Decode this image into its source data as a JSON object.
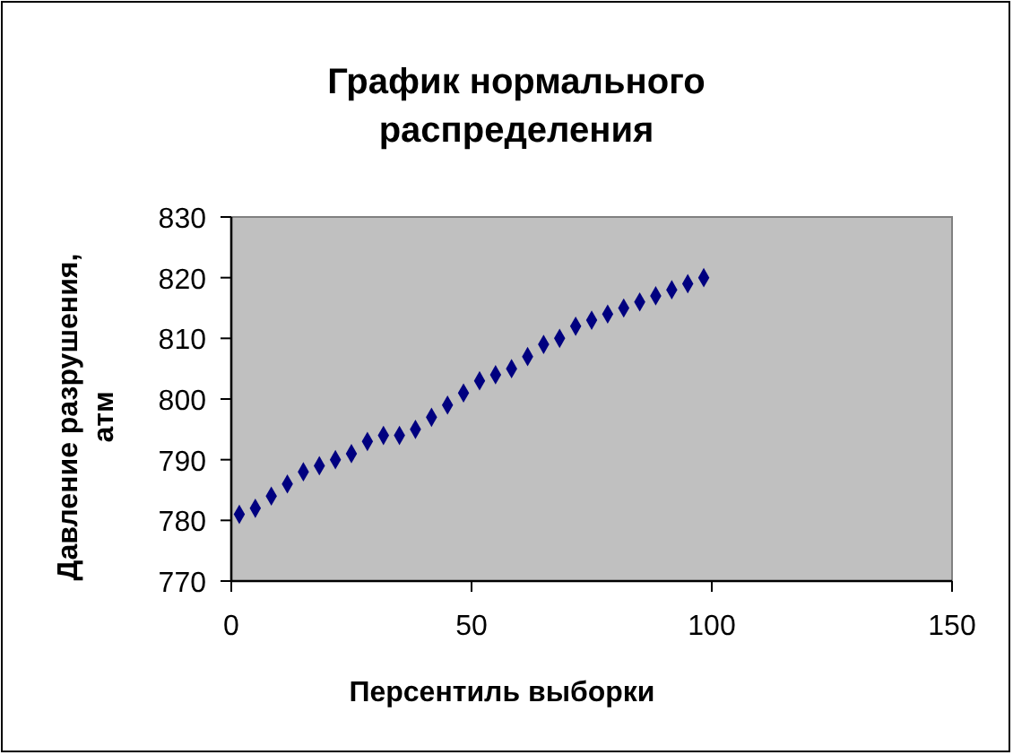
{
  "chart_data": {
    "type": "scatter",
    "title": "График нормального\nраспределения",
    "xlabel": "Персентиль выборки",
    "ylabel": "Давление разрушения,\nатм",
    "x": [
      1.67,
      5,
      8.33,
      11.67,
      15,
      18.33,
      21.67,
      25,
      28.33,
      31.67,
      35,
      38.33,
      41.67,
      45,
      48.33,
      51.67,
      55,
      58.33,
      61.67,
      65,
      68.33,
      71.67,
      75,
      78.33,
      81.67,
      85,
      88.33,
      91.67,
      95,
      98.33
    ],
    "series": [
      {
        "color": "#000080",
        "values": [
          781,
          782,
          784,
          786,
          788,
          789,
          790,
          791,
          793,
          794,
          794,
          795,
          797,
          799,
          801,
          803,
          804,
          805,
          807,
          809,
          810,
          812,
          813,
          814,
          815,
          816,
          817,
          818,
          819,
          820
        ]
      }
    ],
    "xlim": [
      0,
      150
    ],
    "xticks": [
      0,
      50,
      100,
      150
    ],
    "ylim": [
      770,
      830
    ],
    "yticks": [
      770,
      780,
      790,
      800,
      810,
      820,
      830
    ],
    "marker": "diamond",
    "grid": false
  }
}
